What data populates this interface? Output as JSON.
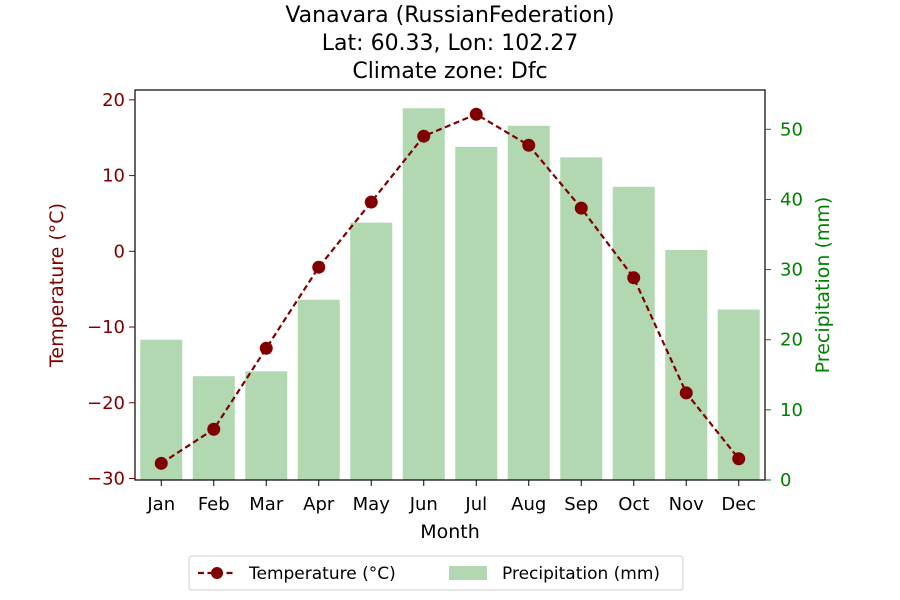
{
  "chart_data": {
    "type": "bar+line",
    "title_lines": [
      "Vanavara (RussianFederation)",
      "Lat: 60.33, Lon: 102.27",
      "Climate zone: Dfc"
    ],
    "xlabel": "Month",
    "categories": [
      "Jan",
      "Feb",
      "Mar",
      "Apr",
      "May",
      "Jun",
      "Jul",
      "Aug",
      "Sep",
      "Oct",
      "Nov",
      "Dec"
    ],
    "temperature": {
      "name": "Temperature (°C)",
      "axis_label": "Temperature (°C)",
      "values": [
        -28.0,
        -23.5,
        -12.8,
        -2.1,
        6.5,
        15.2,
        18.1,
        14.0,
        5.7,
        -3.5,
        -18.7,
        -27.4
      ],
      "ylim": [
        -30.2,
        21.3
      ],
      "ticks": [
        -30,
        -20,
        -10,
        0,
        10,
        20
      ],
      "tick_labels": [
        "−30",
        "−20",
        "−10",
        "0",
        "10",
        "20"
      ],
      "color": "#800000"
    },
    "precipitation": {
      "name": "Precipitation (mm)",
      "axis_label": "Precipitation (mm)",
      "values": [
        20.0,
        14.8,
        15.5,
        25.7,
        36.7,
        53.0,
        47.5,
        50.5,
        46.0,
        41.8,
        32.8,
        24.3
      ],
      "ylim": [
        0,
        55.6
      ],
      "ticks": [
        0,
        10,
        20,
        30,
        40,
        50
      ],
      "tick_labels": [
        "0",
        "10",
        "20",
        "30",
        "40",
        "50"
      ],
      "color": "#b2d8b2",
      "axis_color": "#008000"
    },
    "legend_placement": "bottom-center",
    "grid": false
  }
}
